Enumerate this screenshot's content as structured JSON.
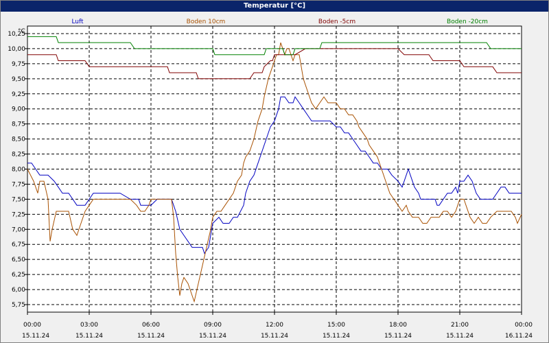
{
  "window": {
    "title": "Temperatur [°C]"
  },
  "chart_data": {
    "type": "line",
    "title": "Temperatur [°C]",
    "unit_label": "°C",
    "ylim": [
      5.625,
      10.375
    ],
    "y_ticks": [
      "10,25",
      "10,00",
      "9,75",
      "9,50",
      "9,25",
      "9,00",
      "8,75",
      "8,50",
      "8,25",
      "8,00",
      "7,75",
      "7,50",
      "7,25",
      "7,00",
      "6,75",
      "6,50",
      "6,25",
      "6,00",
      "5,75"
    ],
    "y_tick_values": [
      10.25,
      10.0,
      9.75,
      9.5,
      9.25,
      9.0,
      8.75,
      8.5,
      8.25,
      8.0,
      7.75,
      7.5,
      7.25,
      7.0,
      6.75,
      6.5,
      6.25,
      6.0,
      5.75
    ],
    "x_ticks": [
      {
        "time": "00:00",
        "date": "15.11.24"
      },
      {
        "time": "03:00",
        "date": "15.11.24"
      },
      {
        "time": "06:00",
        "date": "15.11.24"
      },
      {
        "time": "09:00",
        "date": "15.11.24"
      },
      {
        "time": "12:00",
        "date": "15.11.24"
      },
      {
        "time": "15:00",
        "date": "15.11.24"
      },
      {
        "time": "18:00",
        "date": "15.11.24"
      },
      {
        "time": "21:00",
        "date": "15.11.24"
      },
      {
        "time": "00:00",
        "date": "16.11.24"
      }
    ],
    "x_range_hours": [
      0,
      24
    ],
    "grid": true,
    "legend_position": "top",
    "series": [
      {
        "name": "Luft",
        "color": "#0000c0",
        "points": [
          [
            0,
            8.1
          ],
          [
            0.2,
            8.1
          ],
          [
            0.4,
            8.0
          ],
          [
            0.6,
            7.9
          ],
          [
            1.0,
            7.9
          ],
          [
            1.3,
            7.8
          ],
          [
            1.5,
            7.7
          ],
          [
            1.7,
            7.6
          ],
          [
            2.0,
            7.6
          ],
          [
            2.2,
            7.5
          ],
          [
            2.4,
            7.4
          ],
          [
            2.8,
            7.4
          ],
          [
            3.0,
            7.5
          ],
          [
            3.2,
            7.6
          ],
          [
            3.6,
            7.6
          ],
          [
            4.5,
            7.6
          ],
          [
            5.0,
            7.5
          ],
          [
            5.4,
            7.5
          ],
          [
            5.5,
            7.4
          ],
          [
            6.0,
            7.4
          ],
          [
            6.3,
            7.5
          ],
          [
            7.0,
            7.5
          ],
          [
            7.2,
            7.3
          ],
          [
            7.4,
            7.0
          ],
          [
            7.6,
            6.9
          ],
          [
            7.8,
            6.8
          ],
          [
            8.0,
            6.7
          ],
          [
            8.5,
            6.7
          ],
          [
            8.6,
            6.6
          ],
          [
            8.8,
            6.7
          ],
          [
            9.0,
            7.1
          ],
          [
            9.3,
            7.2
          ],
          [
            9.5,
            7.1
          ],
          [
            9.8,
            7.1
          ],
          [
            10.0,
            7.2
          ],
          [
            10.2,
            7.2
          ],
          [
            10.5,
            7.4
          ],
          [
            10.6,
            7.6
          ],
          [
            10.8,
            7.8
          ],
          [
            11.0,
            7.9
          ],
          [
            11.2,
            8.1
          ],
          [
            11.4,
            8.3
          ],
          [
            11.6,
            8.5
          ],
          [
            11.8,
            8.7
          ],
          [
            12.0,
            8.8
          ],
          [
            12.2,
            9.0
          ],
          [
            12.3,
            9.2
          ],
          [
            12.5,
            9.2
          ],
          [
            12.7,
            9.1
          ],
          [
            12.9,
            9.1
          ],
          [
            13.0,
            9.2
          ],
          [
            13.2,
            9.1
          ],
          [
            13.4,
            9.0
          ],
          [
            13.6,
            8.9
          ],
          [
            13.8,
            8.8
          ],
          [
            14.0,
            8.8
          ],
          [
            14.4,
            8.8
          ],
          [
            14.7,
            8.8
          ],
          [
            15.0,
            8.7
          ],
          [
            15.2,
            8.7
          ],
          [
            15.4,
            8.6
          ],
          [
            15.6,
            8.6
          ],
          [
            15.8,
            8.5
          ],
          [
            16.0,
            8.4
          ],
          [
            16.2,
            8.3
          ],
          [
            16.4,
            8.3
          ],
          [
            16.6,
            8.2
          ],
          [
            16.8,
            8.1
          ],
          [
            17.0,
            8.1
          ],
          [
            17.2,
            8.0
          ],
          [
            17.5,
            8.0
          ],
          [
            17.7,
            7.9
          ],
          [
            18.0,
            7.8
          ],
          [
            18.2,
            7.7
          ],
          [
            18.3,
            7.8
          ],
          [
            18.5,
            8.0
          ],
          [
            18.6,
            7.9
          ],
          [
            18.8,
            7.7
          ],
          [
            19.0,
            7.6
          ],
          [
            19.1,
            7.5
          ],
          [
            19.5,
            7.5
          ],
          [
            19.8,
            7.5
          ],
          [
            19.9,
            7.4
          ],
          [
            20.0,
            7.4
          ],
          [
            20.2,
            7.5
          ],
          [
            20.4,
            7.6
          ],
          [
            20.6,
            7.6
          ],
          [
            20.8,
            7.7
          ],
          [
            20.9,
            7.6
          ],
          [
            21.0,
            7.8
          ],
          [
            21.2,
            7.8
          ],
          [
            21.4,
            7.9
          ],
          [
            21.6,
            7.8
          ],
          [
            21.8,
            7.6
          ],
          [
            22.0,
            7.5
          ],
          [
            22.2,
            7.5
          ],
          [
            22.4,
            7.5
          ],
          [
            22.6,
            7.5
          ],
          [
            22.8,
            7.6
          ],
          [
            23.0,
            7.7
          ],
          [
            23.2,
            7.7
          ],
          [
            23.4,
            7.6
          ],
          [
            23.7,
            7.6
          ],
          [
            24.0,
            7.6
          ]
        ]
      },
      {
        "name": "Boden 10cm",
        "color": "#a85000",
        "points": [
          [
            0,
            8.0
          ],
          [
            0.3,
            7.8
          ],
          [
            0.5,
            7.6
          ],
          [
            0.6,
            7.8
          ],
          [
            0.8,
            7.8
          ],
          [
            1.0,
            7.5
          ],
          [
            1.1,
            6.8
          ],
          [
            1.2,
            7.0
          ],
          [
            1.4,
            7.3
          ],
          [
            1.6,
            7.3
          ],
          [
            2.0,
            7.3
          ],
          [
            2.2,
            7.0
          ],
          [
            2.4,
            6.9
          ],
          [
            2.6,
            7.1
          ],
          [
            2.8,
            7.3
          ],
          [
            3.0,
            7.4
          ],
          [
            3.2,
            7.5
          ],
          [
            3.5,
            7.5
          ],
          [
            4.5,
            7.5
          ],
          [
            5.0,
            7.5
          ],
          [
            5.3,
            7.4
          ],
          [
            5.5,
            7.3
          ],
          [
            5.7,
            7.3
          ],
          [
            5.9,
            7.4
          ],
          [
            6.0,
            7.5
          ],
          [
            6.5,
            7.5
          ],
          [
            6.8,
            7.5
          ],
          [
            7.0,
            7.5
          ],
          [
            7.1,
            7.2
          ],
          [
            7.2,
            6.6
          ],
          [
            7.3,
            6.2
          ],
          [
            7.4,
            5.9
          ],
          [
            7.5,
            6.1
          ],
          [
            7.6,
            6.2
          ],
          [
            7.8,
            6.1
          ],
          [
            8.0,
            5.9
          ],
          [
            8.1,
            5.8
          ],
          [
            8.3,
            6.1
          ],
          [
            8.5,
            6.4
          ],
          [
            8.7,
            6.7
          ],
          [
            8.9,
            7.0
          ],
          [
            9.0,
            7.2
          ],
          [
            9.2,
            7.3
          ],
          [
            9.4,
            7.3
          ],
          [
            9.6,
            7.4
          ],
          [
            9.8,
            7.5
          ],
          [
            10.0,
            7.6
          ],
          [
            10.2,
            7.8
          ],
          [
            10.4,
            7.9
          ],
          [
            10.5,
            8.1
          ],
          [
            10.6,
            8.2
          ],
          [
            10.8,
            8.3
          ],
          [
            11.0,
            8.5
          ],
          [
            11.2,
            8.8
          ],
          [
            11.4,
            9.0
          ],
          [
            11.5,
            9.2
          ],
          [
            11.7,
            9.5
          ],
          [
            11.9,
            9.7
          ],
          [
            12.0,
            9.8
          ],
          [
            12.1,
            9.9
          ],
          [
            12.2,
            9.9
          ],
          [
            12.3,
            10.1
          ],
          [
            12.5,
            9.9
          ],
          [
            12.6,
            10.0
          ],
          [
            12.7,
            10.0
          ],
          [
            12.9,
            9.8
          ],
          [
            13.0,
            9.9
          ],
          [
            13.2,
            9.9
          ],
          [
            13.4,
            9.5
          ],
          [
            13.6,
            9.3
          ],
          [
            13.8,
            9.1
          ],
          [
            14.0,
            9.0
          ],
          [
            14.2,
            9.1
          ],
          [
            14.4,
            9.2
          ],
          [
            14.6,
            9.1
          ],
          [
            15.0,
            9.1
          ],
          [
            15.2,
            9.0
          ],
          [
            15.4,
            9.0
          ],
          [
            15.6,
            8.9
          ],
          [
            15.8,
            8.9
          ],
          [
            16.0,
            8.8
          ],
          [
            16.1,
            8.7
          ],
          [
            16.3,
            8.6
          ],
          [
            16.5,
            8.5
          ],
          [
            16.6,
            8.4
          ],
          [
            16.8,
            8.3
          ],
          [
            17.0,
            8.2
          ],
          [
            17.2,
            8.0
          ],
          [
            17.4,
            7.8
          ],
          [
            17.6,
            7.6
          ],
          [
            17.8,
            7.5
          ],
          [
            18.0,
            7.4
          ],
          [
            18.2,
            7.3
          ],
          [
            18.4,
            7.4
          ],
          [
            18.5,
            7.3
          ],
          [
            18.7,
            7.2
          ],
          [
            19.0,
            7.2
          ],
          [
            19.2,
            7.1
          ],
          [
            19.4,
            7.1
          ],
          [
            19.6,
            7.2
          ],
          [
            20.0,
            7.2
          ],
          [
            20.2,
            7.3
          ],
          [
            20.4,
            7.3
          ],
          [
            20.6,
            7.2
          ],
          [
            20.8,
            7.3
          ],
          [
            21.0,
            7.5
          ],
          [
            21.2,
            7.5
          ],
          [
            21.3,
            7.4
          ],
          [
            21.5,
            7.2
          ],
          [
            21.7,
            7.1
          ],
          [
            21.9,
            7.2
          ],
          [
            22.1,
            7.1
          ],
          [
            22.3,
            7.1
          ],
          [
            22.5,
            7.2
          ],
          [
            22.8,
            7.3
          ],
          [
            23.0,
            7.3
          ],
          [
            23.5,
            7.3
          ],
          [
            23.7,
            7.2
          ],
          [
            23.8,
            7.1
          ],
          [
            24.0,
            7.25
          ]
        ]
      },
      {
        "name": "Boden -5cm",
        "color": "#800000",
        "points": [
          [
            0,
            9.9
          ],
          [
            1.4,
            9.9
          ],
          [
            1.5,
            9.8
          ],
          [
            2.8,
            9.8
          ],
          [
            3.0,
            9.7
          ],
          [
            6.3,
            9.7
          ],
          [
            6.8,
            9.7
          ],
          [
            6.9,
            9.6
          ],
          [
            8.2,
            9.6
          ],
          [
            8.3,
            9.5
          ],
          [
            10.8,
            9.5
          ],
          [
            11.0,
            9.6
          ],
          [
            11.4,
            9.6
          ],
          [
            11.5,
            9.7
          ],
          [
            11.8,
            9.8
          ],
          [
            11.9,
            9.8
          ],
          [
            12.0,
            9.9
          ],
          [
            13.0,
            9.9
          ],
          [
            13.5,
            10.0
          ],
          [
            16.5,
            10.0
          ],
          [
            18.0,
            10.0
          ],
          [
            18.3,
            9.9
          ],
          [
            19.5,
            9.9
          ],
          [
            19.7,
            9.8
          ],
          [
            21.0,
            9.8
          ],
          [
            21.2,
            9.7
          ],
          [
            22.6,
            9.7
          ],
          [
            22.8,
            9.6
          ],
          [
            24.0,
            9.6
          ]
        ]
      },
      {
        "name": "Boden -20cm",
        "color": "#008000",
        "points": [
          [
            0,
            10.2
          ],
          [
            1.4,
            10.2
          ],
          [
            1.5,
            10.1
          ],
          [
            5.0,
            10.1
          ],
          [
            5.2,
            10.0
          ],
          [
            9.0,
            10.0
          ],
          [
            9.1,
            9.9
          ],
          [
            11.5,
            9.9
          ],
          [
            11.6,
            10.0
          ],
          [
            12.4,
            10.0
          ],
          [
            12.5,
            9.9
          ],
          [
            12.9,
            9.9
          ],
          [
            13.0,
            10.0
          ],
          [
            14.2,
            10.0
          ],
          [
            14.3,
            10.1
          ],
          [
            22.3,
            10.1
          ],
          [
            22.5,
            10.0
          ],
          [
            24.0,
            10.0
          ]
        ]
      }
    ]
  }
}
